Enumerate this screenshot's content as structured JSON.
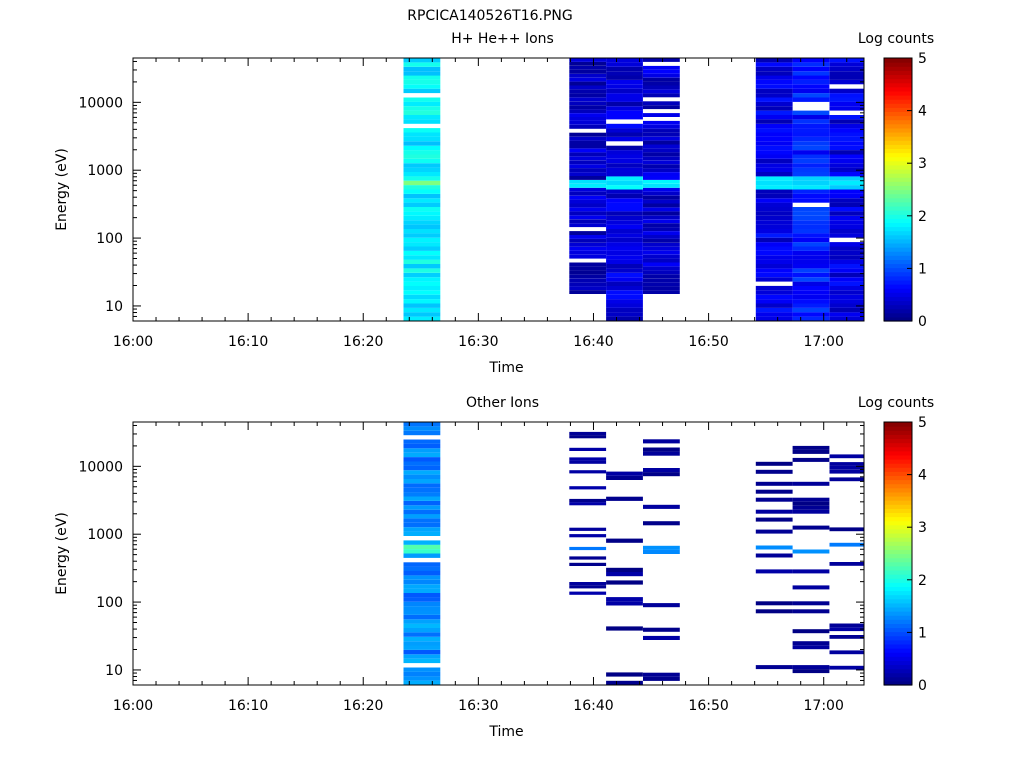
{
  "figure_title": "RPCICA140526T16.PNG",
  "colors": {
    "background": "#ffffff",
    "axis": "#000000"
  },
  "chart_data": [
    {
      "type": "heatmap",
      "title": "H+ He++ Ions",
      "xlabel": "Time",
      "ylabel": "Energy (eV)",
      "x_tick_labels": [
        "16:00",
        "16:10",
        "16:20",
        "16:30",
        "16:40",
        "16:50",
        "17:00"
      ],
      "x_range_minutes": [
        0,
        63.5
      ],
      "y_scale": "log",
      "y_tick_labels": [
        "10",
        "100",
        "1000",
        "10000"
      ],
      "y_range": [
        6,
        45000
      ],
      "colorbar": {
        "label": "Log counts",
        "tick_labels": [
          "0",
          "1",
          "2",
          "3",
          "4",
          "5"
        ],
        "range": [
          0,
          5
        ],
        "colormap": "jet"
      },
      "columns": [
        {
          "t0": 23.5,
          "t1": 26.7,
          "e_min": 6,
          "e_max": 45000,
          "base": 1.8,
          "spikes": [
            [
              560,
              680,
              2.6
            ]
          ]
        },
        {
          "t0": 37.9,
          "t1": 41.1,
          "e_min": 15,
          "e_max": 45000,
          "base": 0.35,
          "spikes": [
            [
              540,
              760,
              1.9
            ]
          ]
        },
        {
          "t0": 41.1,
          "t1": 44.3,
          "e_min": 6,
          "e_max": 45000,
          "base": 0.45,
          "spikes": [
            [
              540,
              760,
              1.9
            ]
          ]
        },
        {
          "t0": 44.3,
          "t1": 47.5,
          "e_min": 15,
          "e_max": 45000,
          "base": 0.4,
          "spikes": [
            [
              540,
              760,
              1.9
            ]
          ]
        },
        {
          "t0": 54.1,
          "t1": 57.3,
          "e_min": 6,
          "e_max": 45000,
          "base": 0.5,
          "spikes": [
            [
              540,
              760,
              1.9
            ]
          ]
        },
        {
          "t0": 57.3,
          "t1": 60.5,
          "e_min": 6,
          "e_max": 45000,
          "base": 0.75,
          "spikes": [
            [
              540,
              760,
              1.8
            ]
          ]
        },
        {
          "t0": 60.5,
          "t1": 63.5,
          "e_min": 6,
          "e_max": 45000,
          "base": 0.5,
          "spikes": [
            [
              540,
              760,
              1.8
            ]
          ]
        }
      ]
    },
    {
      "type": "heatmap",
      "title": "Other Ions",
      "xlabel": "Time",
      "ylabel": "Energy (eV)",
      "x_tick_labels": [
        "16:00",
        "16:10",
        "16:20",
        "16:30",
        "16:40",
        "16:50",
        "17:00"
      ],
      "x_range_minutes": [
        0,
        63.5
      ],
      "y_scale": "log",
      "y_tick_labels": [
        "10",
        "100",
        "1000",
        "10000"
      ],
      "y_range": [
        6,
        45000
      ],
      "colorbar": {
        "label": "Log counts",
        "tick_labels": [
          "0",
          "1",
          "2",
          "3",
          "4",
          "5"
        ],
        "range": [
          0,
          5
        ],
        "colormap": "jet"
      },
      "columns": [
        {
          "t0": 23.5,
          "t1": 26.7,
          "e_min": 6,
          "e_max": 45000,
          "base": 1.3,
          "spikes": [
            [
              540,
              720,
              2.3
            ]
          ]
        },
        {
          "t0": 37.9,
          "t1": 41.1,
          "e_min": 60,
          "e_max": 40000,
          "base": 0.15,
          "sparse": true,
          "spikes": [
            [
              520,
              760,
              1.4
            ]
          ]
        },
        {
          "t0": 41.1,
          "t1": 44.3,
          "e_min": 6,
          "e_max": 30000,
          "base": 0.1,
          "sparse": true,
          "spikes": [
            [
              520,
              760,
              1.5
            ]
          ]
        },
        {
          "t0": 44.3,
          "t1": 47.5,
          "e_min": 6,
          "e_max": 25000,
          "base": 0.12,
          "sparse": true,
          "spikes": [
            [
              520,
              760,
              1.4
            ]
          ]
        },
        {
          "t0": 54.1,
          "t1": 57.3,
          "e_min": 6,
          "e_max": 20000,
          "base": 0.1,
          "sparse": true,
          "spikes": [
            [
              520,
              760,
              1.5
            ]
          ]
        },
        {
          "t0": 57.3,
          "t1": 60.5,
          "e_min": 6,
          "e_max": 20000,
          "base": 0.1,
          "sparse": true,
          "spikes": [
            [
              520,
              760,
              1.5
            ]
          ]
        },
        {
          "t0": 60.5,
          "t1": 63.5,
          "e_min": 6,
          "e_max": 15000,
          "base": 0.1,
          "sparse": true,
          "spikes": [
            [
              520,
              760,
              1.4
            ]
          ]
        }
      ]
    }
  ]
}
